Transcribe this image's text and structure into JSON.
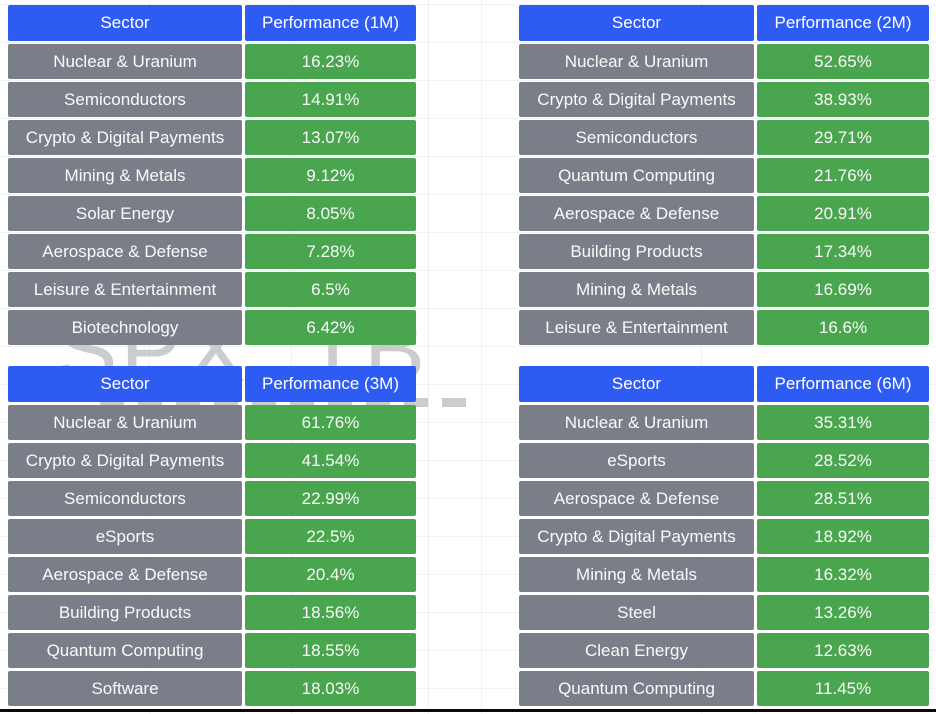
{
  "watermark": {
    "line1": "SPX, TB"
  },
  "colors": {
    "header_blue": "#2e5cf2",
    "row_gray": "#7a7e88",
    "value_green": "#4aa64e",
    "watermark_gray": "#caccce"
  },
  "chart_data": [
    {
      "type": "table",
      "title": "Performance (1M)",
      "columns": [
        "Sector",
        "Performance (1M)"
      ],
      "rows": [
        [
          "Nuclear & Uranium",
          "16.23%"
        ],
        [
          "Semiconductors",
          "14.91%"
        ],
        [
          "Crypto & Digital Payments",
          "13.07%"
        ],
        [
          "Mining & Metals",
          "9.12%"
        ],
        [
          "Solar Energy",
          "8.05%"
        ],
        [
          "Aerospace & Defense",
          "7.28%"
        ],
        [
          "Leisure & Entertainment",
          "6.5%"
        ],
        [
          "Biotechnology",
          "6.42%"
        ]
      ]
    },
    {
      "type": "table",
      "title": "Performance (2M)",
      "columns": [
        "Sector",
        "Performance (2M)"
      ],
      "rows": [
        [
          "Nuclear & Uranium",
          "52.65%"
        ],
        [
          "Crypto & Digital Payments",
          "38.93%"
        ],
        [
          "Semiconductors",
          "29.71%"
        ],
        [
          "Quantum Computing",
          "21.76%"
        ],
        [
          "Aerospace & Defense",
          "20.91%"
        ],
        [
          "Building Products",
          "17.34%"
        ],
        [
          "Mining & Metals",
          "16.69%"
        ],
        [
          "Leisure & Entertainment",
          "16.6%"
        ]
      ]
    },
    {
      "type": "table",
      "title": "Performance (3M)",
      "columns": [
        "Sector",
        "Performance (3M)"
      ],
      "rows": [
        [
          "Nuclear & Uranium",
          "61.76%"
        ],
        [
          "Crypto & Digital Payments",
          "41.54%"
        ],
        [
          "Semiconductors",
          "22.99%"
        ],
        [
          "eSports",
          "22.5%"
        ],
        [
          "Aerospace & Defense",
          "20.4%"
        ],
        [
          "Building Products",
          "18.56%"
        ],
        [
          "Quantum Computing",
          "18.55%"
        ],
        [
          "Software",
          "18.03%"
        ]
      ]
    },
    {
      "type": "table",
      "title": "Performance (6M)",
      "columns": [
        "Sector",
        "Performance (6M)"
      ],
      "rows": [
        [
          "Nuclear & Uranium",
          "35.31%"
        ],
        [
          "eSports",
          "28.52%"
        ],
        [
          "Aerospace & Defense",
          "28.51%"
        ],
        [
          "Crypto & Digital Payments",
          "18.92%"
        ],
        [
          "Mining & Metals",
          "16.32%"
        ],
        [
          "Steel",
          "13.26%"
        ],
        [
          "Clean Energy",
          "12.63%"
        ],
        [
          "Quantum Computing",
          "11.45%"
        ]
      ]
    }
  ]
}
